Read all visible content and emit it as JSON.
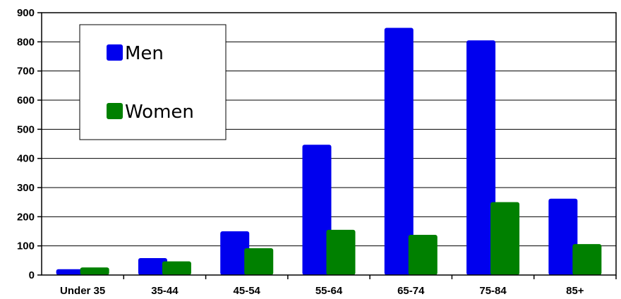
{
  "chart_data": {
    "type": "bar",
    "categories": [
      "Under 35",
      "35-44",
      "45-54",
      "55-64",
      "65-74",
      "75-84",
      "85+"
    ],
    "series": [
      {
        "name": "Men",
        "values": [
          20,
          58,
          150,
          447,
          848,
          805,
          262
        ],
        "color": "#0000ee"
      },
      {
        "name": "Women",
        "values": [
          26,
          47,
          92,
          155,
          138,
          250,
          106
        ],
        "color": "#008000"
      }
    ],
    "ylim": [
      0,
      900
    ],
    "yticks": [
      0,
      100,
      200,
      300,
      400,
      500,
      600,
      700,
      800,
      900
    ],
    "grid": true,
    "legend_position": "top-left",
    "title": "",
    "xlabel": "",
    "ylabel": ""
  }
}
